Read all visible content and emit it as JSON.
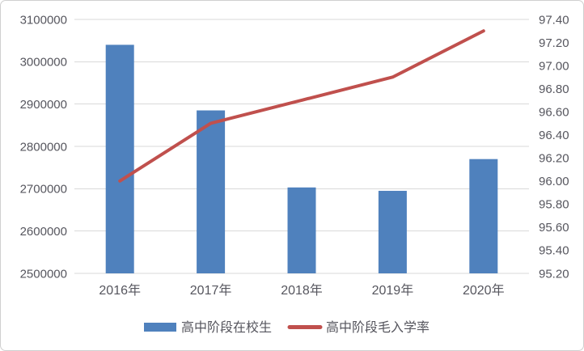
{
  "chart_data": {
    "type": "bar",
    "subtype": "combo-bar-line",
    "title": "",
    "categories": [
      "2016年",
      "2017年",
      "2018年",
      "2019年",
      "2020年"
    ],
    "series": [
      {
        "name": "高中阶段在校生",
        "type": "bar",
        "axis": "left",
        "color": "#4F81BD",
        "values": [
          3040000,
          2885000,
          2703000,
          2695000,
          2770000
        ]
      },
      {
        "name": "高中阶段毛入学率",
        "type": "line",
        "axis": "right",
        "color": "#C0504D",
        "values": [
          96.0,
          96.5,
          96.7,
          96.9,
          97.3
        ]
      }
    ],
    "left_axis": {
      "min": 2500000,
      "max": 3100000,
      "step": 100000,
      "tick_labels": [
        "3100000",
        "3000000",
        "2900000",
        "2800000",
        "2700000",
        "2600000",
        "2500000"
      ]
    },
    "right_axis": {
      "min": 95.2,
      "max": 97.4,
      "step": 0.2,
      "tick_labels": [
        "97.40",
        "97.20",
        "97.00",
        "96.80",
        "96.60",
        "96.40",
        "96.20",
        "96.00",
        "95.80",
        "95.60",
        "95.40",
        "95.20"
      ]
    },
    "grid": true,
    "legend_position": "bottom"
  },
  "colors": {
    "bar": "#4F81BD",
    "line": "#C0504D",
    "gridline": "#D9D9D9",
    "text": "#56565E",
    "frame_border": "#CFCFCF",
    "background": "#FFFFFF"
  }
}
